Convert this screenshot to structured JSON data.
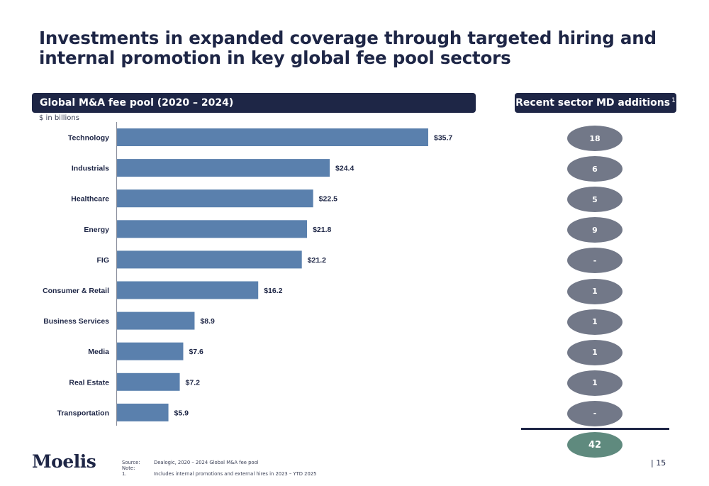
{
  "title": "Investments in expanded coverage through targeted hiring and internal promotion in key global fee pool sectors",
  "left_panel": {
    "header": "Global M&A fee pool (2020 – 2024)",
    "units": "$ in billions"
  },
  "right_panel": {
    "header": "Recent sector MD additions",
    "header_superscript": "1",
    "values": [
      "18",
      "6",
      "5",
      "9",
      "-",
      "1",
      "1",
      "1",
      "1",
      "-"
    ],
    "total": "42"
  },
  "chart_data": {
    "type": "bar",
    "orientation": "horizontal",
    "title": "Global M&A fee pool (2020 – 2024)",
    "ylabel": "$ in billions",
    "xlabel": "",
    "categories": [
      "Technology",
      "Industrials",
      "Healthcare",
      "Energy",
      "FIG",
      "Consumer & Retail",
      "Business Services",
      "Media",
      "Real Estate",
      "Transportation"
    ],
    "values": [
      35.7,
      24.4,
      22.5,
      21.8,
      21.2,
      16.2,
      8.9,
      7.6,
      7.2,
      5.9
    ],
    "labels": [
      "$35.7",
      "$24.4",
      "$22.5",
      "$21.8",
      "$21.2",
      "$16.2",
      "$8.9",
      "$7.6",
      "$7.2",
      "$5.9"
    ],
    "xlim": [
      0,
      35.7
    ],
    "grid": false,
    "legend": "none",
    "bar_color": "#5a80ad"
  },
  "footer": {
    "logo": "Moelis",
    "source_label": "Source:",
    "source_text": "Dealogic, 2020 – 2024 Global M&A fee pool",
    "note_label": "Note:",
    "note_1_label": "1.",
    "note_1_text": "Includes internal promotions and external hires in 2023 – YTD 2025",
    "page_number": "|  15"
  }
}
